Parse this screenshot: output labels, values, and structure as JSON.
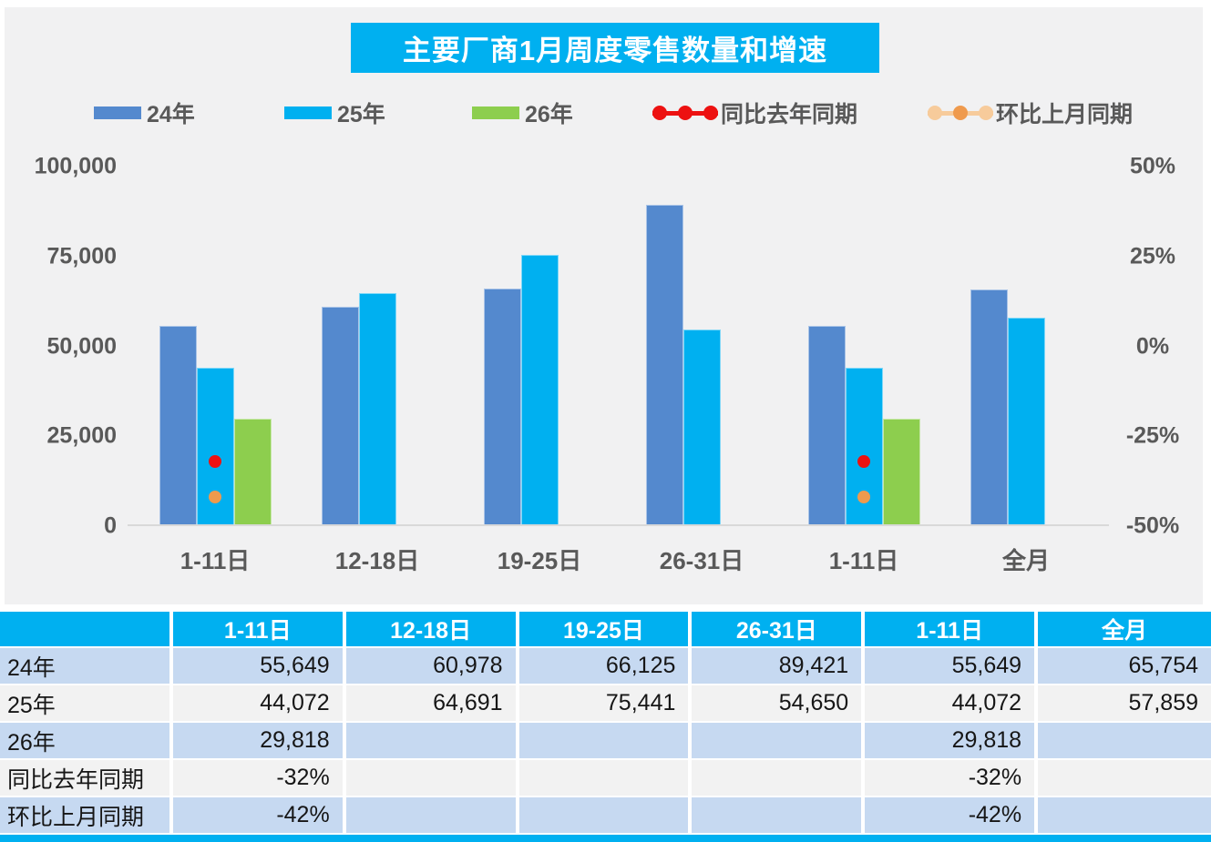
{
  "title": "主要厂商1月周度零售数量和增速",
  "colors": {
    "accent": "#00B0F0",
    "bar_24": "#5489CE",
    "bar_25": "#00B0F0",
    "bar_26": "#8DCE4E",
    "line_yoy": "#ED1111",
    "line_mom": "#EF9A4D",
    "line_mom_light": "#F7CB9B",
    "row_blue": "#C6D9F1",
    "row_gray": "#F2F2F2",
    "panel_bg": "#F1F1F2",
    "axis_text": "#595959",
    "baseline": "#D9D9D9"
  },
  "legend": [
    {
      "label": "24年"
    },
    {
      "label": "25年"
    },
    {
      "label": "26年"
    },
    {
      "label": "同比去年同期"
    },
    {
      "label": "环比上月同期"
    }
  ],
  "chart_data": {
    "type": "bar+line",
    "title": "主要厂商1月周度零售数量和增速",
    "categories": [
      "1-11日",
      "12-18日",
      "19-25日",
      "26-31日",
      "1-11日",
      "全月"
    ],
    "series": [
      {
        "name": "24年",
        "axis": "left",
        "values": [
          55649,
          60978,
          66125,
          89421,
          55649,
          65754
        ]
      },
      {
        "name": "25年",
        "axis": "left",
        "values": [
          44072,
          64691,
          75441,
          54650,
          44072,
          57859
        ]
      },
      {
        "name": "26年",
        "axis": "left",
        "values": [
          29818,
          null,
          null,
          null,
          29818,
          null
        ]
      }
    ],
    "lines": [
      {
        "name": "同比去年同期",
        "axis": "right",
        "values": [
          -0.32,
          null,
          null,
          null,
          -0.32,
          null
        ]
      },
      {
        "name": "环比上月同期",
        "axis": "right",
        "values": [
          -0.42,
          null,
          null,
          null,
          -0.42,
          null
        ]
      }
    ],
    "left_axis": {
      "min": 0,
      "max": 100000,
      "ticks_top_down": [
        "100,000",
        "75,000",
        "50,000",
        "25,000",
        "0"
      ]
    },
    "right_axis": {
      "min": -0.5,
      "max": 0.5,
      "ticks_top_down": [
        "50%",
        "25%",
        "0%",
        "-25%",
        "-50%"
      ]
    },
    "grid": false,
    "legend_position": "top"
  },
  "table": {
    "header": [
      "",
      "1-11日",
      "12-18日",
      "19-25日",
      "26-31日",
      "1-11日",
      "全月"
    ],
    "rows": [
      {
        "label": "24年",
        "cells": [
          "55,649",
          "60,978",
          "66,125",
          "89,421",
          "55,649",
          "65,754"
        ]
      },
      {
        "label": "25年",
        "cells": [
          "44,072",
          "64,691",
          "75,441",
          "54,650",
          "44,072",
          "57,859"
        ]
      },
      {
        "label": "26年",
        "cells": [
          "29,818",
          "",
          "",
          "",
          "29,818",
          ""
        ]
      },
      {
        "label": "同比去年同期",
        "cells": [
          "-32%",
          "",
          "",
          "",
          "-32%",
          ""
        ]
      },
      {
        "label": "环比上月同期",
        "cells": [
          "-42%",
          "",
          "",
          "",
          "-42%",
          ""
        ]
      }
    ]
  }
}
